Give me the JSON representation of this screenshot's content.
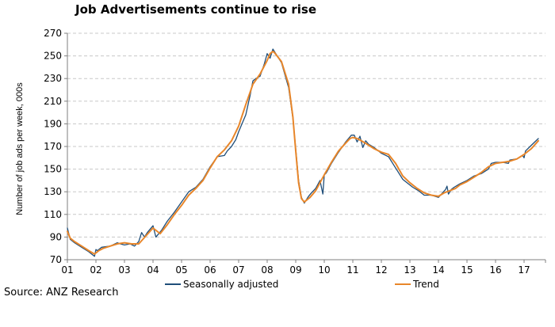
{
  "title": "Job Advertisements continue to rise",
  "source": "Source: ANZ Research",
  "colors": {
    "seasonally_adjusted": "#1f4e79",
    "trend": "#e8862a",
    "grid": "#c8c8c8",
    "axis": "#7f7f7f"
  },
  "chart_data": {
    "type": "line",
    "title": "Job Advertisements continue to rise",
    "xlabel": "",
    "ylabel": "Number of job ads per week, 000s",
    "xlim": [
      2001,
      2017.75
    ],
    "ylim": [
      70,
      270
    ],
    "yticks": [
      70,
      90,
      110,
      130,
      150,
      170,
      190,
      210,
      230,
      250,
      270
    ],
    "xtick_labels": [
      "01",
      "02",
      "03",
      "04",
      "05",
      "06",
      "07",
      "08",
      "09",
      "10",
      "11",
      "12",
      "13",
      "14",
      "15",
      "16",
      "17"
    ],
    "xtick_values": [
      2001,
      2002,
      2003,
      2004,
      2005,
      2006,
      2007,
      2008,
      2009,
      2010,
      2011,
      2012,
      2013,
      2014,
      2015,
      2016,
      2017
    ],
    "grid": "horizontal dashed",
    "legend_position": "bottom",
    "series": [
      {
        "name": "Seasonally adjusted",
        "color": "#1f4e79",
        "x": [
          2001.0,
          2001.05,
          2001.1,
          2001.25,
          2001.5,
          2001.75,
          2001.95,
          2002.0,
          2002.05,
          2002.2,
          2002.5,
          2002.75,
          2002.85,
          2003.0,
          2003.2,
          2003.35,
          2003.5,
          2003.6,
          2003.7,
          2003.8,
          2004.0,
          2004.1,
          2004.3,
          2004.5,
          2004.75,
          2005.0,
          2005.25,
          2005.5,
          2005.75,
          2006.0,
          2006.25,
          2006.5,
          2006.6,
          2006.75,
          2006.9,
          2007.0,
          2007.25,
          2007.4,
          2007.5,
          2007.6,
          2007.75,
          2007.9,
          2008.0,
          2008.1,
          2008.2,
          2008.25,
          2008.5,
          2008.75,
          2008.9,
          2009.0,
          2009.1,
          2009.2,
          2009.3,
          2009.45,
          2009.55,
          2009.7,
          2009.85,
          2009.95,
          2010.0,
          2010.05,
          2010.1,
          2010.25,
          2010.5,
          2010.75,
          2010.95,
          2011.05,
          2011.15,
          2011.25,
          2011.35,
          2011.45,
          2011.55,
          2011.75,
          2012.0,
          2012.25,
          2012.5,
          2012.75,
          2012.95,
          2013.1,
          2013.3,
          2013.5,
          2013.75,
          2014.0,
          2014.25,
          2014.3,
          2014.35,
          2014.45,
          2014.55,
          2014.75,
          2015.0,
          2015.25,
          2015.5,
          2015.75,
          2015.85,
          2016.0,
          2016.25,
          2016.45,
          2016.5,
          2016.75,
          2016.95,
          2017.0,
          2017.05,
          2017.25,
          2017.5
        ],
        "y": [
          98,
          93,
          88,
          85,
          81,
          77,
          73,
          79,
          78,
          81,
          82,
          85,
          84,
          83,
          84,
          82,
          86,
          94,
          90,
          94,
          100,
          90,
          96,
          104,
          112,
          121,
          130,
          134,
          141,
          152,
          161,
          162,
          166,
          170,
          176,
          183,
          198,
          215,
          228,
          230,
          232,
          243,
          252,
          248,
          256,
          254,
          244,
          222,
          195,
          168,
          140,
          125,
          120,
          126,
          129,
          133,
          140,
          128,
          145,
          146,
          148,
          155,
          165,
          174,
          180,
          180,
          174,
          179,
          169,
          175,
          172,
          169,
          164,
          161,
          151,
          141,
          137,
          134,
          131,
          127,
          127,
          125,
          132,
          135,
          128,
          132,
          134,
          137,
          140,
          144,
          146,
          150,
          155,
          156,
          156,
          155,
          158,
          159,
          162,
          160,
          166,
          171,
          177
        ]
      },
      {
        "name": "Trend",
        "color": "#e8862a",
        "x": [
          2001.0,
          2001.1,
          2001.25,
          2001.5,
          2001.75,
          2001.95,
          2002.1,
          2002.25,
          2002.5,
          2002.75,
          2003.0,
          2003.25,
          2003.5,
          2003.75,
          2004.0,
          2004.25,
          2004.5,
          2004.75,
          2005.0,
          2005.25,
          2005.5,
          2005.75,
          2006.0,
          2006.25,
          2006.5,
          2006.75,
          2007.0,
          2007.25,
          2007.5,
          2007.75,
          2008.0,
          2008.1,
          2008.2,
          2008.25,
          2008.5,
          2008.75,
          2008.9,
          2009.0,
          2009.1,
          2009.2,
          2009.3,
          2009.5,
          2009.7,
          2009.85,
          2010.0,
          2010.25,
          2010.5,
          2010.75,
          2010.9,
          2011.0,
          2011.15,
          2011.3,
          2011.5,
          2011.75,
          2012.0,
          2012.25,
          2012.5,
          2012.75,
          2013.0,
          2013.25,
          2013.5,
          2013.75,
          2014.0,
          2014.2,
          2014.4,
          2014.6,
          2014.75,
          2015.0,
          2015.25,
          2015.5,
          2015.75,
          2016.0,
          2016.25,
          2016.5,
          2016.75,
          2017.0,
          2017.25,
          2017.5
        ],
        "y": [
          95,
          89,
          86,
          82,
          78,
          75,
          78,
          80,
          82,
          84,
          85,
          84,
          84,
          91,
          98,
          93,
          101,
          110,
          118,
          127,
          133,
          140,
          151,
          161,
          167,
          175,
          188,
          207,
          225,
          234,
          246,
          252,
          254,
          253,
          245,
          225,
          196,
          166,
          138,
          124,
          121,
          125,
          131,
          138,
          145,
          156,
          166,
          173,
          177,
          178,
          177,
          175,
          172,
          168,
          165,
          163,
          155,
          144,
          138,
          133,
          129,
          127,
          126,
          129,
          131,
          133,
          136,
          139,
          143,
          147,
          152,
          155,
          156,
          157,
          159,
          163,
          168,
          175
        ]
      }
    ]
  }
}
